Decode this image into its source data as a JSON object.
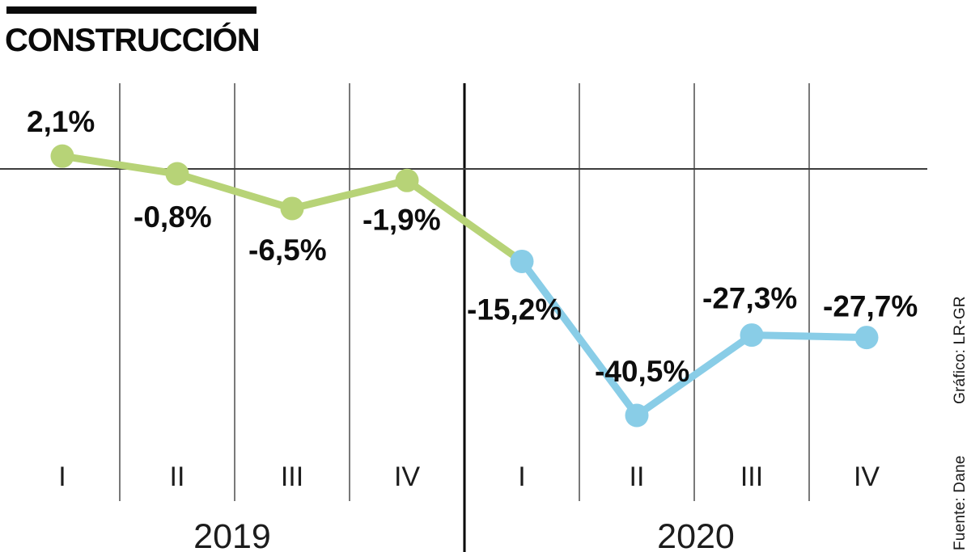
{
  "header": {
    "title": "CONSTRUCCIÓN"
  },
  "credits": {
    "graphic": "Gráfico: LR-GR",
    "source": "Fuente: Dane"
  },
  "chart_data": {
    "type": "line",
    "title": "CONSTRUCCIÓN",
    "unit": "%",
    "categories": [
      "I",
      "II",
      "III",
      "IV",
      "I",
      "II",
      "III",
      "IV"
    ],
    "year_groups": [
      {
        "label": "2019",
        "quarter_indices": [
          0,
          1,
          2,
          3
        ]
      },
      {
        "label": "2020",
        "quarter_indices": [
          4,
          5,
          6,
          7
        ]
      }
    ],
    "series": [
      {
        "name": "2019",
        "color": "#b7d377",
        "values": [
          2.1,
          -0.8,
          -6.5,
          -1.9
        ]
      },
      {
        "name": "2020",
        "color": "#89cde7",
        "values": [
          -15.2,
          -40.5,
          -27.3,
          -27.7
        ]
      }
    ],
    "value_labels": [
      "2,1%",
      "-0,8%",
      "-6,5%",
      "-1,9%",
      "-15,2%",
      "-40,5%",
      "-27,3%",
      "-27,7%"
    ],
    "axis": {
      "zero_line": true,
      "ylim": [
        -45,
        8
      ],
      "grid": "vertical quarter separators, heavy divider between years",
      "legend": "none"
    },
    "colors": {
      "grid": "#4d4d4d",
      "zero_line": "#3d3d3d",
      "year_divider": "#000000",
      "label_text": "#0d0d0d"
    }
  }
}
